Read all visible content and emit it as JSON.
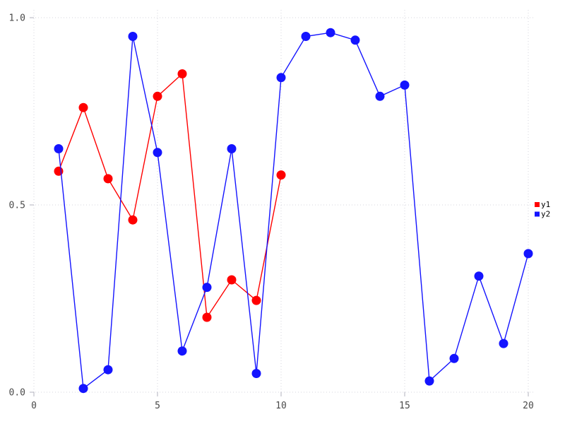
{
  "chart_data": {
    "type": "line",
    "title": "",
    "xlabel": "",
    "ylabel": "",
    "xlim": [
      0,
      20.2
    ],
    "ylim": [
      0,
      1.02
    ],
    "grid": true,
    "legend_position": "right-middle",
    "x_ticks": [
      0,
      5,
      10,
      15,
      20
    ],
    "x_tick_labels": [
      "0",
      "5",
      "10",
      "15",
      "20"
    ],
    "y_ticks": [
      0,
      0.5,
      1.0
    ],
    "y_tick_labels": [
      "0.0",
      "0.5",
      "1.0"
    ],
    "series": [
      {
        "name": "y1",
        "color": "#ff0000",
        "marker": "circle",
        "x": [
          1,
          2,
          3,
          4,
          5,
          6,
          7,
          8,
          9,
          10
        ],
        "values": [
          0.59,
          0.76,
          0.57,
          0.46,
          0.79,
          0.85,
          0.2,
          0.3,
          0.245,
          0.58
        ]
      },
      {
        "name": "y2",
        "color": "#1414ff",
        "marker": "circle",
        "x": [
          1,
          2,
          3,
          4,
          5,
          6,
          7,
          8,
          9,
          10,
          11,
          12,
          13,
          14,
          15,
          16,
          17,
          18,
          19,
          20
        ],
        "values": [
          0.65,
          0.01,
          0.06,
          0.95,
          0.64,
          0.11,
          0.28,
          0.65,
          0.05,
          0.84,
          0.95,
          0.96,
          0.94,
          0.79,
          0.82,
          0.03,
          0.09,
          0.31,
          0.13,
          0.37
        ]
      }
    ],
    "legend": {
      "items": [
        {
          "label": "y1",
          "color": "#ff0000"
        },
        {
          "label": "y2",
          "color": "#1414ff"
        }
      ]
    }
  },
  "colors": {
    "background": "#ffffff",
    "gridline": "#d4d4de",
    "tick_label": "#4a4a4a",
    "legend_text": "#000000"
  }
}
